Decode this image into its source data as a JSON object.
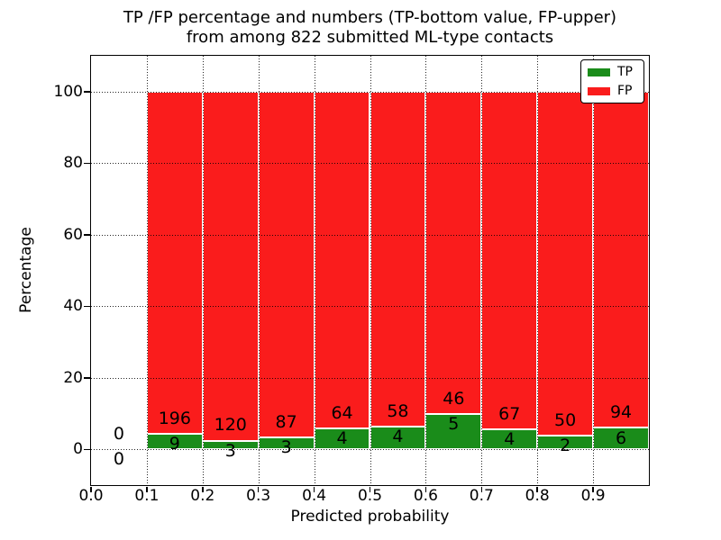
{
  "figure": {
    "title_line1": "TP /FP percentage and numbers (TP-bottom value, FP-upper)",
    "title_line2": "from among 822 submitted ML-type contacts",
    "total_contacts": "822"
  },
  "chart_data": {
    "type": "bar",
    "stacked": true,
    "title": "TP /FP percentage and numbers (TP-bottom value, FP-upper) from among 822 submitted ML-type contacts",
    "xlabel": "Predicted probability",
    "ylabel": "Percentage",
    "xlim": [
      0.0,
      1.0
    ],
    "ylim": [
      -10,
      110
    ],
    "x_ticks": [
      "0.0",
      "0.1",
      "0.2",
      "0.3",
      "0.4",
      "0.5",
      "0.6",
      "0.7",
      "0.8",
      "0.9"
    ],
    "y_ticks": [
      "0",
      "20",
      "40",
      "60",
      "80",
      "100"
    ],
    "grid": "dotted",
    "bar_width": 0.1,
    "legend": {
      "position": "upper right",
      "entries": [
        {
          "label": "TP",
          "color": "#1a8c1a"
        },
        {
          "label": "FP",
          "color": "#fa1c1c"
        }
      ]
    },
    "bins": [
      {
        "x_start": 0.0,
        "x_end": 0.1,
        "tp_count": 0,
        "fp_count": 0,
        "tp_pct": 0,
        "fp_pct": 0
      },
      {
        "x_start": 0.1,
        "x_end": 0.2,
        "tp_count": 9,
        "fp_count": 196,
        "tp_pct": 4.39,
        "fp_pct": 95.61
      },
      {
        "x_start": 0.2,
        "x_end": 0.3,
        "tp_count": 3,
        "fp_count": 120,
        "tp_pct": 2.44,
        "fp_pct": 97.56
      },
      {
        "x_start": 0.3,
        "x_end": 0.4,
        "tp_count": 3,
        "fp_count": 87,
        "tp_pct": 3.33,
        "fp_pct": 96.67
      },
      {
        "x_start": 0.4,
        "x_end": 0.5,
        "tp_count": 4,
        "fp_count": 64,
        "tp_pct": 5.88,
        "fp_pct": 94.12
      },
      {
        "x_start": 0.5,
        "x_end": 0.6,
        "tp_count": 4,
        "fp_count": 58,
        "tp_pct": 6.45,
        "fp_pct": 93.55
      },
      {
        "x_start": 0.6,
        "x_end": 0.7,
        "tp_count": 5,
        "fp_count": 46,
        "tp_pct": 9.8,
        "fp_pct": 90.2
      },
      {
        "x_start": 0.7,
        "x_end": 0.8,
        "tp_count": 4,
        "fp_count": 67,
        "tp_pct": 5.63,
        "fp_pct": 94.37
      },
      {
        "x_start": 0.8,
        "x_end": 0.9,
        "tp_count": 2,
        "fp_count": 50,
        "tp_pct": 3.85,
        "fp_pct": 96.15
      },
      {
        "x_start": 0.9,
        "x_end": 1.0,
        "tp_count": 6,
        "fp_count": 94,
        "tp_pct": 6.0,
        "fp_pct": 94.0
      }
    ]
  }
}
